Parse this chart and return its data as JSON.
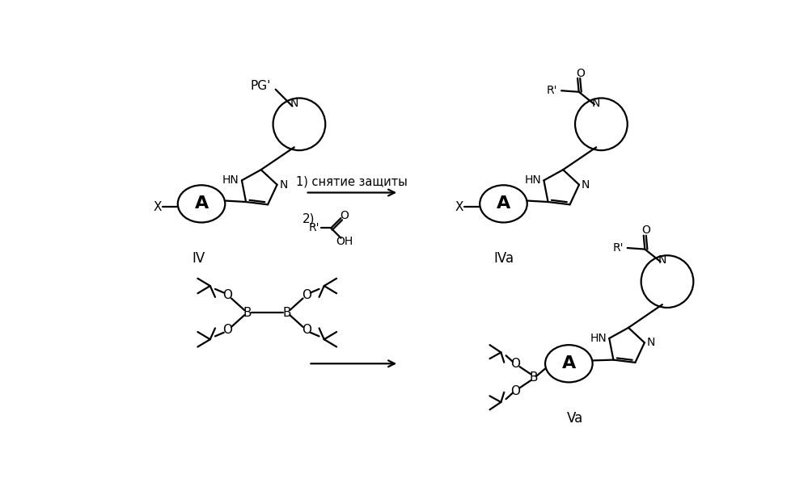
{
  "bg_color": "#ffffff",
  "lw": 1.6,
  "fs": 11,
  "fs_big": 16,
  "fs_label": 12,
  "label_IV": "IV",
  "label_IVa": "IVa",
  "label_Va": "Va",
  "text_step1": "1) снятие защиты",
  "text_step2": "2)"
}
